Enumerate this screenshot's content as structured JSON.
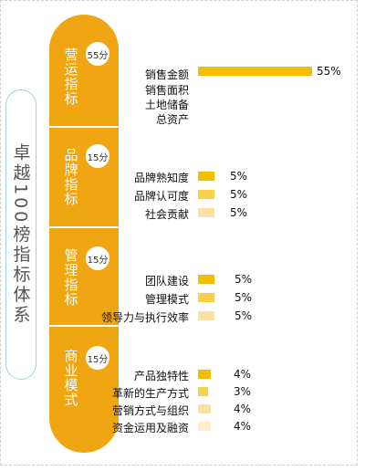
{
  "side_title": "卓越100榜指标体系",
  "colors": {
    "orange": "#f0a612",
    "bar_gold": "#f5bd00",
    "bar_yellow": "#f7d04c",
    "bar_light": "#fae3a2",
    "bar_pale": "#fdf0c8",
    "outline": "#9fd3d6"
  },
  "categories": [
    {
      "name": "营运指标",
      "score": "55分",
      "items": [
        {
          "label": "销售金额",
          "value": "55%"
        },
        {
          "label": "销售面积",
          "value": ""
        },
        {
          "label": "土地储备",
          "value": ""
        },
        {
          "label": "总资产",
          "value": ""
        }
      ]
    },
    {
      "name": "品牌指标",
      "score": "15分",
      "items": [
        {
          "label": "品牌熟知度",
          "value": "5%"
        },
        {
          "label": "品牌认可度",
          "value": "5%"
        },
        {
          "label": "社会贡献",
          "value": "5%"
        }
      ]
    },
    {
      "name": "管理指标",
      "score": "15分",
      "items": [
        {
          "label": "团队建设",
          "value": "5%"
        },
        {
          "label": "管理模式",
          "value": "5%"
        },
        {
          "label": "领导力与执行效率",
          "value": "5%"
        }
      ]
    },
    {
      "name": "商业模式",
      "score": "15分",
      "items": [
        {
          "label": "产品独特性",
          "value": "4%"
        },
        {
          "label": "革新的生产方式",
          "value": "3%"
        },
        {
          "label": "营销方式与组织",
          "value": "4%"
        },
        {
          "label": "资金运用及融资",
          "value": "4%"
        }
      ]
    }
  ]
}
